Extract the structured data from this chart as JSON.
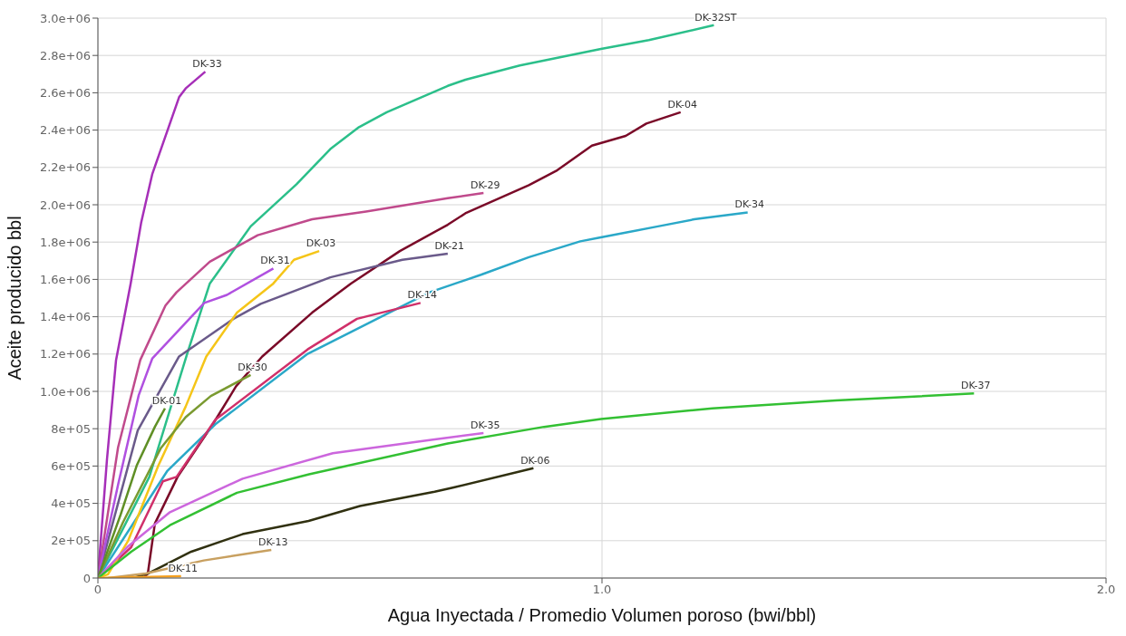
{
  "chart_data": {
    "type": "line",
    "xlabel": "Agua Inyectada / Promedio Volumen poroso (bwi/bbl)",
    "ylabel": "Aceite producido bbl",
    "xlim": [
      0,
      2
    ],
    "xticks": [
      0,
      {
        "value": 1,
        "label": "1.0"
      },
      {
        "value": 2,
        "label": "2.0"
      }
    ],
    "ylim": [
      0,
      3000000
    ],
    "yticks": [
      0,
      {
        "value": 200000,
        "label": "2e+05"
      },
      {
        "value": 400000,
        "label": "4e+05"
      },
      {
        "value": 600000,
        "label": "6e+05"
      },
      {
        "value": 800000,
        "label": "8e+05"
      },
      {
        "value": 1000000,
        "label": "1.0e+06"
      },
      {
        "value": 1200000,
        "label": "1.2e+06"
      },
      {
        "value": 1400000,
        "label": "1.4e+06"
      },
      {
        "value": 1600000,
        "label": "1.6e+06"
      },
      {
        "value": 1800000,
        "label": "1.8e+06"
      },
      {
        "value": 2000000,
        "label": "2.0e+06"
      },
      {
        "value": 2200000,
        "label": "2.2e+06"
      },
      {
        "value": 2400000,
        "label": "2.4e+06"
      },
      {
        "value": 2600000,
        "label": "2.6e+06"
      },
      {
        "value": 2800000,
        "label": "2.8e+06"
      },
      {
        "value": 3000000,
        "label": "3.0e+06"
      }
    ],
    "grid": true,
    "legend": false,
    "series": [
      {
        "name": "DK-33",
        "color": "#a62fb8",
        "x": [
          0,
          0.018,
          0.036,
          0.065,
          0.086,
          0.108,
          0.161,
          0.174,
          0.213
        ],
        "values": [
          0,
          636000,
          1168000,
          1578000,
          1907000,
          2166000,
          2576000,
          2623000,
          2713000
        ]
      },
      {
        "name": "DK-32ST",
        "color": "#2bbf8a",
        "x": [
          0,
          0.102,
          0.177,
          0.222,
          0.303,
          0.394,
          0.461,
          0.518,
          0.573,
          0.694,
          0.729,
          0.837,
          0.998,
          1.093,
          1.222
        ],
        "values": [
          0,
          542000,
          1201000,
          1578000,
          1884000,
          2110000,
          2298000,
          2416000,
          2496000,
          2637000,
          2670000,
          2746000,
          2835000,
          2882000,
          2962000
        ]
      },
      {
        "name": "DK-04",
        "color": "#7a0a28",
        "x": [
          0.09,
          0.099,
          0.113,
          0.158,
          0.228,
          0.274,
          0.326,
          0.425,
          0.502,
          0.599,
          0.694,
          0.729,
          0.855,
          0.909,
          0.98,
          1.047,
          1.088,
          1.156
        ],
        "values": [
          0,
          24000,
          292000,
          542000,
          824000,
          1027000,
          1187000,
          1422000,
          1578000,
          1752000,
          1893000,
          1954000,
          2105000,
          2181000,
          2317000,
          2369000,
          2435000,
          2496000
        ]
      },
      {
        "name": "DK-29",
        "color": "#c04a8c",
        "x": [
          0,
          0.04,
          0.084,
          0.134,
          0.156,
          0.222,
          0.317,
          0.425,
          0.532,
          0.694,
          0.765
        ],
        "values": [
          0,
          700000,
          1168000,
          1460000,
          1531000,
          1695000,
          1837000,
          1922000,
          1964000,
          2035000,
          2063000
        ]
      },
      {
        "name": "DK-34",
        "color": "#2aa8c8",
        "x": [
          0,
          0.138,
          0.233,
          0.416,
          0.658,
          0.76,
          0.855,
          0.957,
          0.993,
          1.111,
          1.183,
          1.289
        ],
        "values": [
          0,
          575000,
          824000,
          1201000,
          1531000,
          1625000,
          1719000,
          1804000,
          1823000,
          1884000,
          1922000,
          1959000
        ]
      },
      {
        "name": "DK-14",
        "color": "#d0306a",
        "x": [
          0,
          0.066,
          0.129,
          0.156,
          0.233,
          0.416,
          0.514,
          0.64
        ],
        "values": [
          0,
          165000,
          518000,
          542000,
          848000,
          1225000,
          1389000,
          1474000
        ]
      },
      {
        "name": "DK-21",
        "color": "#6a5a8a",
        "x": [
          0,
          0.03,
          0.079,
          0.161,
          0.269,
          0.323,
          0.461,
          0.604,
          0.694
        ],
        "values": [
          0,
          300000,
          791000,
          1187000,
          1389000,
          1469000,
          1611000,
          1705000,
          1738000
        ]
      },
      {
        "name": "DK-03",
        "color": "#f5c518",
        "x": [
          0,
          0.02,
          0.06,
          0.12,
          0.174,
          0.215,
          0.276,
          0.348,
          0.389,
          0.439
        ],
        "values": [
          0,
          20000,
          200000,
          603000,
          918000,
          1187000,
          1422000,
          1578000,
          1705000,
          1752000
        ]
      },
      {
        "name": "DK-31",
        "color": "#b050e0",
        "x": [
          0,
          0.04,
          0.081,
          0.108,
          0.211,
          0.256,
          0.348
        ],
        "values": [
          0,
          500000,
          980000,
          1177000,
          1474000,
          1517000,
          1658000
        ]
      },
      {
        "name": "DK-30",
        "color": "#7a9a30",
        "x": [
          0,
          0.05,
          0.125,
          0.174,
          0.224,
          0.303
        ],
        "values": [
          0,
          300000,
          697000,
          862000,
          975000,
          1088000
        ]
      },
      {
        "name": "DK-01",
        "color": "#5f8f25",
        "x": [
          0,
          0.045,
          0.077,
          0.113,
          0.133
        ],
        "values": [
          0,
          339000,
          603000,
          810000,
          909000
        ]
      },
      {
        "name": "DK-35",
        "color": "#cc66dd",
        "x": [
          0,
          0.06,
          0.143,
          0.287,
          0.466,
          0.658,
          0.765
        ],
        "values": [
          0,
          170000,
          353000,
          532000,
          669000,
          739000,
          777000
        ]
      },
      {
        "name": "DK-37",
        "color": "#33c033",
        "x": [
          0,
          0.066,
          0.143,
          0.276,
          0.419,
          0.694,
          0.885,
          0.998,
          1.219,
          1.464,
          1.738
        ],
        "values": [
          0,
          141000,
          283000,
          457000,
          556000,
          721000,
          810000,
          852000,
          909000,
          951000,
          989000
        ]
      },
      {
        "name": "DK-06",
        "color": "#303010",
        "x": [
          0.07,
          0.099,
          0.185,
          0.287,
          0.418,
          0.52,
          0.668,
          0.706,
          0.864
        ],
        "values": [
          0,
          24000,
          141000,
          235000,
          306000,
          386000,
          462000,
          485000,
          589000
        ]
      },
      {
        "name": "DK-13",
        "color": "#c8a060",
        "x": [
          0.02,
          0.095,
          0.21,
          0.344
        ],
        "values": [
          0,
          24000,
          94000,
          151000
        ]
      },
      {
        "name": "DK-11",
        "color": "#f5a020",
        "x": [
          0,
          0.165
        ],
        "values": [
          0,
          10000
        ]
      }
    ]
  }
}
